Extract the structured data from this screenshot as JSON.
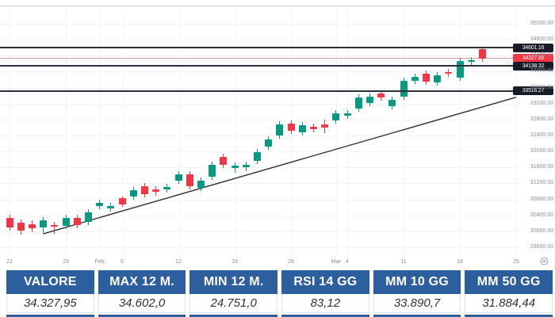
{
  "chart_data": {
    "type": "candlestick",
    "title": "",
    "y_axis": {
      "min": 29600,
      "max": 35200,
      "tick_step": 400,
      "tick_format": "0.00"
    },
    "x_axis": {
      "labels": [
        {
          "i": 0,
          "t": "22"
        },
        {
          "i": 5,
          "t": "29"
        },
        {
          "i": 8,
          "t": "Feb"
        },
        {
          "i": 10,
          "t": "5"
        },
        {
          "i": 15,
          "t": "12"
        },
        {
          "i": 20,
          "t": "19"
        },
        {
          "i": 25,
          "t": "26"
        },
        {
          "i": 29,
          "t": "Mar"
        },
        {
          "i": 30,
          "t": "4"
        },
        {
          "i": 35,
          "t": "11"
        },
        {
          "i": 40,
          "t": "18"
        },
        {
          "i": 45,
          "t": "25"
        }
      ]
    },
    "candles": [
      [
        30335,
        30414,
        30017,
        30096
      ],
      [
        30216,
        30295,
        29917,
        30017
      ],
      [
        30176,
        30275,
        29977,
        30076
      ],
      [
        30096,
        30355,
        29937,
        30275
      ],
      [
        30156,
        30235,
        29937,
        30116
      ],
      [
        30136,
        30414,
        30056,
        30335
      ],
      [
        30335,
        30414,
        30076,
        30156
      ],
      [
        30235,
        30553,
        30156,
        30473
      ],
      [
        30632,
        30790,
        30553,
        30711
      ],
      [
        30573,
        30711,
        30493,
        30632
      ],
      [
        30831,
        30870,
        30612,
        30672
      ],
      [
        30871,
        31109,
        30791,
        31030
      ],
      [
        31129,
        31208,
        30851,
        30930
      ],
      [
        31050,
        31129,
        30891,
        30990
      ],
      [
        31050,
        31188,
        30970,
        31109
      ],
      [
        31268,
        31506,
        31188,
        31427
      ],
      [
        31427,
        31506,
        31050,
        31129
      ],
      [
        31089,
        31347,
        31010,
        31268
      ],
      [
        31367,
        31745,
        31287,
        31665
      ],
      [
        31864,
        31944,
        31586,
        31665
      ],
      [
        31585,
        31724,
        31466,
        31645
      ],
      [
        31605,
        31745,
        31506,
        31665
      ],
      [
        31765,
        32062,
        31685,
        31983
      ],
      [
        32122,
        32380,
        32042,
        32301
      ],
      [
        32400,
        32758,
        32321,
        32678
      ],
      [
        32698,
        32778,
        32440,
        32519
      ],
      [
        32480,
        32738,
        32400,
        32658
      ],
      [
        32619,
        32698,
        32480,
        32559
      ],
      [
        32678,
        32798,
        32460,
        32599
      ],
      [
        32778,
        33036,
        32698,
        32956
      ],
      [
        32897,
        33036,
        32817,
        32956
      ],
      [
        33075,
        33433,
        32996,
        33353
      ],
      [
        33214,
        33452,
        33135,
        33373
      ],
      [
        33453,
        33532,
        33274,
        33353
      ],
      [
        33135,
        33373,
        33056,
        33294
      ],
      [
        33373,
        33850,
        33294,
        33770
      ],
      [
        33770,
        33949,
        33691,
        33869
      ],
      [
        33949,
        34028,
        33671,
        33750
      ],
      [
        33731,
        33989,
        33651,
        33909
      ],
      [
        33989,
        34068,
        33869,
        33949
      ],
      [
        33850,
        34346,
        33770,
        34267
      ],
      [
        34247,
        34366,
        34167,
        34287
      ],
      [
        34560,
        34602,
        34250,
        34328
      ]
    ],
    "levels": [
      {
        "price": 34601.16,
        "label": "34601.16",
        "style": "solid",
        "tag_color": "#181c27"
      },
      {
        "price": 34327.95,
        "label": "34327.95",
        "style": "dotted",
        "tag_color": "#f23645"
      },
      {
        "price": 34138.32,
        "label": "34138.32",
        "style": "solid",
        "tag_color": "#181c27"
      },
      {
        "price": 33516.27,
        "label": "33516.27",
        "style": "solid",
        "tag_color": "#181c27"
      }
    ],
    "trendline": {
      "from_i": 3,
      "from_price": 29937,
      "to_i": 45,
      "to_price": 33360
    },
    "colors": {
      "up": "#089981",
      "down": "#f23645",
      "axis_text": "#8a8e97",
      "level_dark": "#2b2f3a",
      "trend": "#2e3138"
    }
  },
  "table": {
    "header_bg": "#2d5e9e",
    "columns": [
      {
        "header": "VALORE",
        "value": "34.327,95"
      },
      {
        "header": "MAX 12 M.",
        "value": "34.602,0"
      },
      {
        "header": "MIN 12 M.",
        "value": "24.751,0"
      },
      {
        "header": "RSI 14 GG",
        "value": "83,12"
      },
      {
        "header": "MM 10 GG",
        "value": "33.890,7"
      },
      {
        "header": "MM 50 GG",
        "value": "31.884,44"
      }
    ]
  },
  "icons": {
    "axis_settings": "price-scale-settings-icon"
  }
}
